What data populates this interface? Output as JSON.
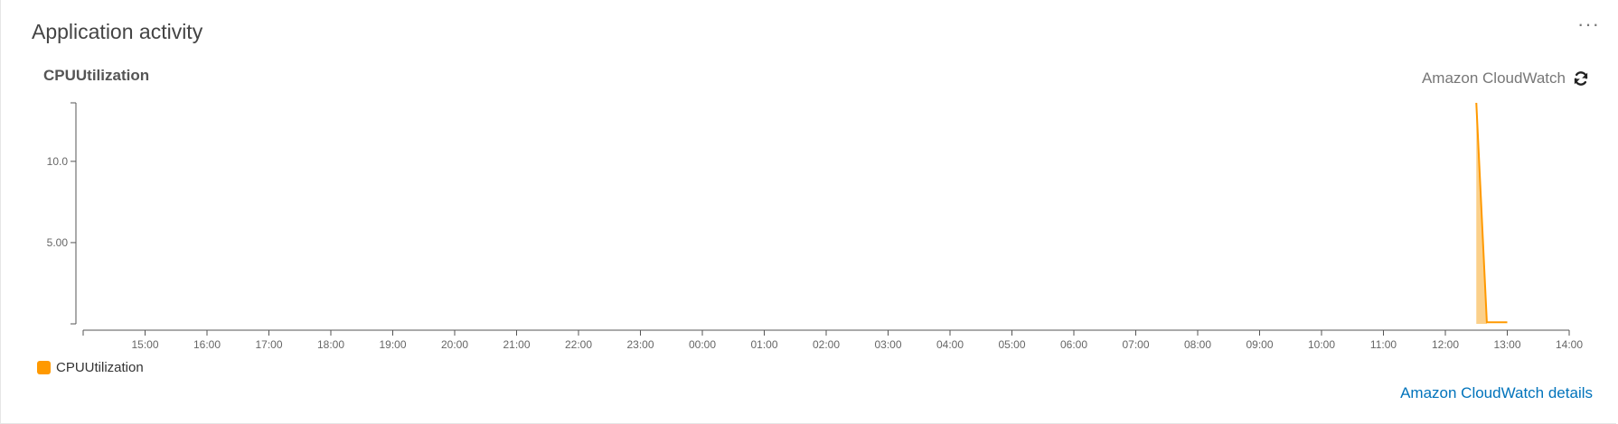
{
  "panel": {
    "title": "Application activity",
    "more_label": "···"
  },
  "source": {
    "label": "Amazon CloudWatch"
  },
  "details_link": "Amazon CloudWatch details",
  "colors": {
    "series": "#ff9900",
    "series_fill": "#fbd08a",
    "link": "#0073bb"
  },
  "chart_data": {
    "type": "area",
    "title": "CPUUtilization",
    "xlabel": "",
    "ylabel": "",
    "x_ticks": [
      "15:00",
      "16:00",
      "17:00",
      "18:00",
      "19:00",
      "20:00",
      "21:00",
      "22:00",
      "23:00",
      "00:00",
      "01:00",
      "02:00",
      "03:00",
      "04:00",
      "05:00",
      "06:00",
      "07:00",
      "08:00",
      "09:00",
      "10:00",
      "11:00",
      "12:00",
      "13:00",
      "14:00"
    ],
    "y_ticks": [
      "5.00",
      "10.0"
    ],
    "ylim": [
      0,
      13.6
    ],
    "series": [
      {
        "name": "CPUUtilization",
        "x_hours": [
          22.5,
          22.67,
          22.83,
          23.0
        ],
        "values": [
          13.6,
          0.1,
          0.1,
          0.1
        ]
      }
    ],
    "legend": [
      "CPUUtilization"
    ],
    "legend_position": "bottom-left",
    "grid": false
  }
}
